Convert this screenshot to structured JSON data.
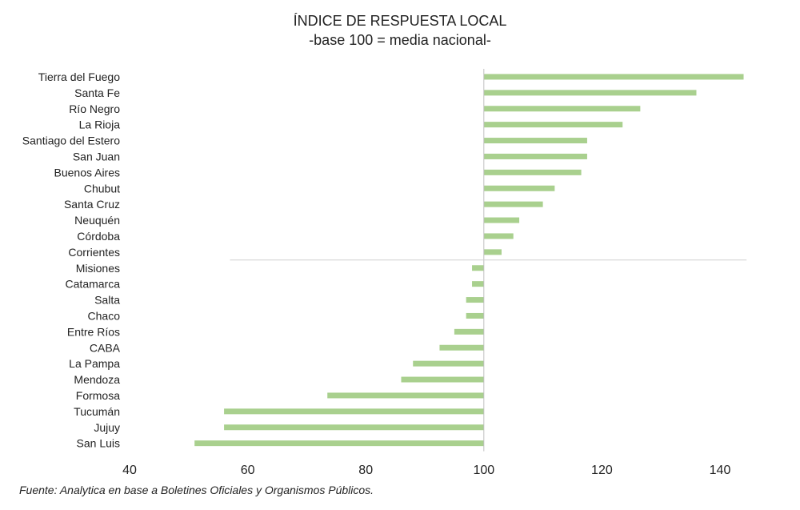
{
  "chart_data": {
    "type": "bar",
    "orientation": "horizontal",
    "title": "ÍNDICE DE RESPUESTA LOCAL",
    "subtitle": "-base 100 = media nacional-",
    "baseline": 100,
    "categories": [
      "Tierra del Fuego",
      "Santa Fe",
      "Río Negro",
      "La Rioja",
      "Santiago del Estero",
      "San Juan",
      "Buenos Aires",
      "Chubut",
      "Santa Cruz",
      "Neuquén",
      "Córdoba",
      "Corrientes",
      "Misiones",
      "Catamarca",
      "Salta",
      "Chaco",
      "Entre Ríos",
      "CABA",
      "La Pampa",
      "Mendoza",
      "Formosa",
      "Tucumán",
      "Jujuy",
      "San Luis"
    ],
    "values": [
      144,
      136,
      126.5,
      123.5,
      117.5,
      117.5,
      116.5,
      112,
      110,
      106,
      105,
      103,
      98,
      98,
      97,
      97,
      95,
      92.5,
      88,
      86,
      73.5,
      56,
      56,
      51
    ],
    "xticks": [
      "40",
      "60",
      "80",
      "100",
      "120",
      "140"
    ],
    "xlim": [
      40,
      150
    ],
    "bar_color": "#a9d08e",
    "grid": false,
    "legend": "none"
  },
  "source": "Fuente: Analytica en base a Boletines Oficiales y Organismos Públicos."
}
